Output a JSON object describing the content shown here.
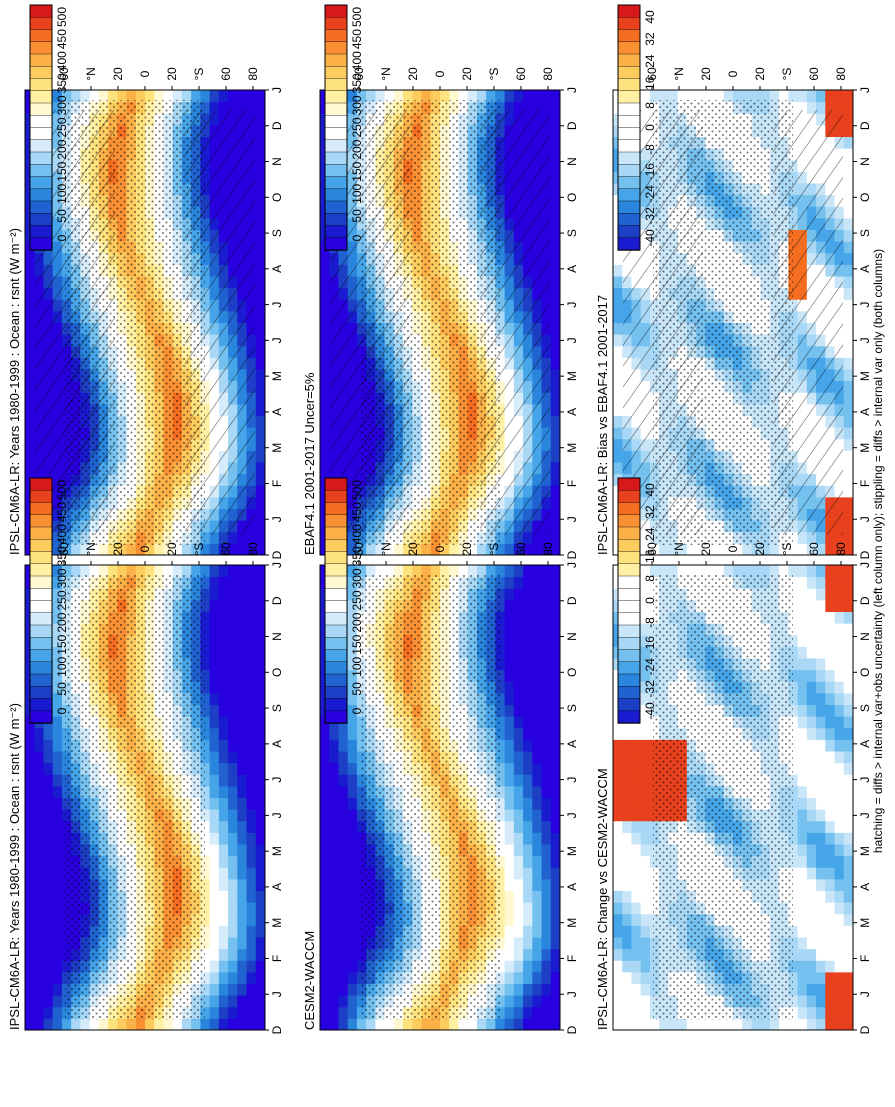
{
  "figure": {
    "footnote": "hatching = diffs > internal var+obs uncertainty (left column only); stippling = diffs > internal var only (both columns)"
  },
  "colorbars": {
    "absolute": {
      "labels": [
        "500",
        "450",
        "400",
        "350",
        "300",
        "250",
        "200",
        "150",
        "100",
        "50",
        "0"
      ],
      "colors": [
        "#d7191c",
        "#e8411e",
        "#f46d21",
        "#f99134",
        "#fcb048",
        "#fdcc5e",
        "#fee27d",
        "#fff0a3",
        "#fff8d0",
        "#ffffff",
        "#ffffff",
        "#d6ecfa",
        "#a8d8f5",
        "#74c1f0",
        "#46a5e8",
        "#2a85dc",
        "#2062d0",
        "#1c3fc6",
        "#1a1ad0",
        "#2800e0"
      ]
    },
    "difference": {
      "labels": [
        "40",
        "32",
        "24",
        "16",
        "8",
        "0",
        "-8",
        "-16",
        "-24",
        "-32",
        "-40"
      ],
      "colors": [
        "#d7191c",
        "#e8411e",
        "#f46d21",
        "#f99134",
        "#fcb048",
        "#fdcc5e",
        "#fee27d",
        "#fff0a3",
        "#ffffff",
        "#ffffff",
        "#ffffff",
        "#ffffff",
        "#c9e6f8",
        "#a8d8f5",
        "#74c1f0",
        "#46a5e8",
        "#2a85dc",
        "#2062d0",
        "#1c3fc6",
        "#1a1ad0"
      ]
    }
  },
  "axes": {
    "lat_ticks": [
      "80",
      "60",
      "°N",
      "20",
      "0",
      "20",
      "°S",
      "60",
      "80"
    ],
    "month_ticks": [
      "D",
      "J",
      "F",
      "M",
      "A",
      "M",
      "J",
      "J",
      "A",
      "S",
      "O",
      "N",
      "D",
      "J"
    ]
  },
  "chart_data": [
    {
      "type": "heatmap",
      "title": "IPSL-CM6A-LR: Years 1980-1999 : Ocean : rsnt (W m⁻²)",
      "x": [
        "D",
        "J",
        "F",
        "M",
        "A",
        "M",
        "J",
        "J",
        "A",
        "S",
        "O",
        "N",
        "D",
        "J"
      ],
      "y_ticks": [
        "80",
        "60",
        "°N",
        "20",
        "0",
        "20",
        "°S",
        "60",
        "80"
      ],
      "colorbar": "absolute",
      "range": [
        0,
        500
      ],
      "hatching": true,
      "stippling": true
    },
    {
      "type": "heatmap",
      "title": "EBAF4.1 2001-2017 Uncer=5%",
      "x": [
        "D",
        "J",
        "F",
        "M",
        "A",
        "M",
        "J",
        "J",
        "A",
        "S",
        "O",
        "N",
        "D",
        "J"
      ],
      "y_ticks": [
        "80",
        "60",
        "°N",
        "20",
        "0",
        "20",
        "°S",
        "60",
        "80"
      ],
      "colorbar": "absolute",
      "range": [
        0,
        500
      ],
      "hatching": true,
      "stippling": true
    },
    {
      "type": "heatmap",
      "title": "IPSL-CM6A-LR: Bias vs EBAF4.1 2001-2017",
      "x": [
        "D",
        "J",
        "F",
        "M",
        "A",
        "M",
        "J",
        "J",
        "A",
        "S",
        "O",
        "N",
        "D",
        "J"
      ],
      "y_ticks": [
        "80",
        "60",
        "°N",
        "20",
        "0",
        "20",
        "°S",
        "60",
        "80"
      ],
      "colorbar": "difference",
      "range": [
        -40,
        40
      ],
      "hatching": true,
      "stippling": true
    },
    {
      "type": "heatmap",
      "title": "IPSL-CM6A-LR: Years 1980-1999 : Ocean : rsnt (W m⁻²)",
      "x": [
        "D",
        "J",
        "F",
        "M",
        "A",
        "M",
        "J",
        "J",
        "A",
        "S",
        "O",
        "N",
        "D",
        "J"
      ],
      "y_ticks": [
        "80",
        "60",
        "°N",
        "20",
        "0",
        "20",
        "°S",
        "60",
        "80"
      ],
      "colorbar": "absolute",
      "range": [
        0,
        500
      ],
      "hatching": false,
      "stippling": true
    },
    {
      "type": "heatmap",
      "title": "CESM2-WACCM",
      "x": [
        "D",
        "J",
        "F",
        "M",
        "A",
        "M",
        "J",
        "J",
        "A",
        "S",
        "O",
        "N",
        "D",
        "J"
      ],
      "y_ticks": [
        "80",
        "60",
        "°N",
        "20",
        "0",
        "20",
        "°S",
        "60",
        "80"
      ],
      "colorbar": "absolute",
      "range": [
        0,
        500
      ],
      "hatching": false,
      "stippling": true
    },
    {
      "type": "heatmap",
      "title": "IPSL-CM6A-LR: Change vs CESM2-WACCM",
      "x": [
        "D",
        "J",
        "F",
        "M",
        "A",
        "M",
        "J",
        "J",
        "A",
        "S",
        "O",
        "N",
        "D",
        "J"
      ],
      "y_ticks": [
        "80",
        "60",
        "°N",
        "20",
        "0",
        "20",
        "°S",
        "60",
        "80"
      ],
      "colorbar": "difference",
      "range": [
        -40,
        40
      ],
      "hatching": false,
      "stippling": true
    }
  ]
}
